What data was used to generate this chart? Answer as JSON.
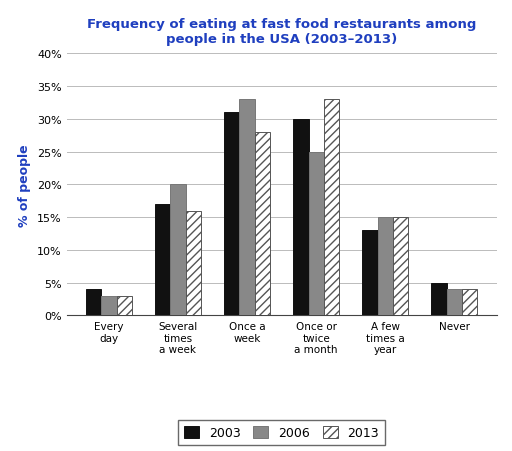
{
  "title": "Frequency of eating at fast food restaurants among\npeople in the USA (2003–2013)",
  "title_color": "#1F3FBF",
  "ylabel": "% of people",
  "ylabel_color": "#1F3FBF",
  "categories": [
    "Every\nday",
    "Several\ntimes\na week",
    "Once a\nweek",
    "Once or\ntwice\na month",
    "A few\ntimes a\nyear",
    "Never"
  ],
  "series": {
    "2003": [
      4,
      17,
      31,
      30,
      13,
      5
    ],
    "2006": [
      3,
      20,
      33,
      25,
      15,
      4
    ],
    "2013": [
      3,
      16,
      28,
      33,
      15,
      4
    ]
  },
  "bar_colors": {
    "2003": "#111111",
    "2006": "#888888",
    "2013": "white"
  },
  "bar_edgecolors": {
    "2003": "#111111",
    "2006": "#777777",
    "2013": "#555555"
  },
  "hatch": {
    "2003": "",
    "2006": "",
    "2013": "////"
  },
  "ylim": [
    0,
    40
  ],
  "yticks": [
    0,
    5,
    10,
    15,
    20,
    25,
    30,
    35,
    40
  ],
  "ytick_labels": [
    "0%",
    "5%",
    "10%",
    "15%",
    "20%",
    "25%",
    "30%",
    "35%",
    "40%"
  ],
  "legend_labels": [
    "2003",
    "2006",
    "2013"
  ],
  "background_color": "#ffffff",
  "grid_color": "#bbbbbb",
  "bar_width": 0.22,
  "figsize": [
    5.12,
    4.52
  ],
  "dpi": 100
}
